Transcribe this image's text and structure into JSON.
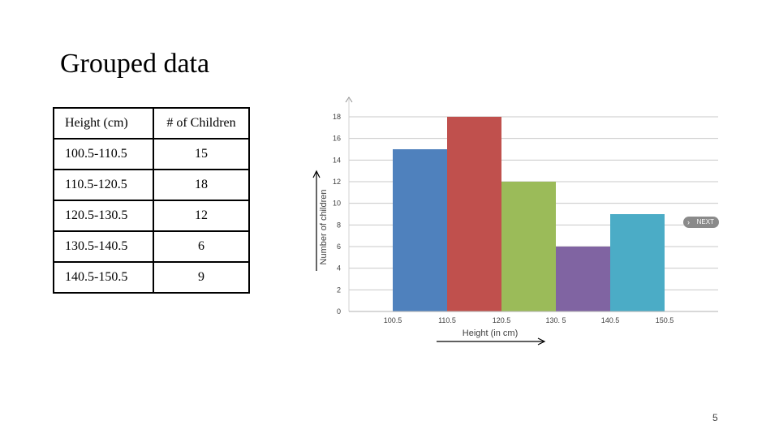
{
  "slide": {
    "title": "Grouped data",
    "page_number": "5"
  },
  "table": {
    "headers": [
      "Height (cm)",
      "# of Children"
    ],
    "rows": [
      [
        "100.5-110.5",
        "15"
      ],
      [
        "110.5-120.5",
        "18"
      ],
      [
        "120.5-130.5",
        "12"
      ],
      [
        "130.5-140.5",
        "6"
      ],
      [
        "140.5-150.5",
        "9"
      ]
    ]
  },
  "overlay": {
    "next_label": "NEXT",
    "next_icon": "chevron-right-icon"
  },
  "chart_data": {
    "type": "bar",
    "categories": [
      "100.5-110.5",
      "110.5-120.5",
      "120.5-130.5",
      "130.5-140.5",
      "140.5-150.5"
    ],
    "x_ticks": [
      "100.5",
      "110.5",
      "120.5",
      "130. 5",
      "140.5",
      "150.5"
    ],
    "values": [
      15,
      18,
      12,
      6,
      9
    ],
    "colors": [
      "#4f81bd",
      "#c0504d",
      "#9bbb59",
      "#8064a2",
      "#4bacc6"
    ],
    "xlabel": "Height (in cm)",
    "ylabel": "Number of children",
    "ylim": [
      0,
      18
    ],
    "y_ticks": [
      "0",
      "2",
      "4",
      "6",
      "8",
      "10",
      "12",
      "14",
      "16",
      "18"
    ],
    "grid": true,
    "legend": "none"
  }
}
